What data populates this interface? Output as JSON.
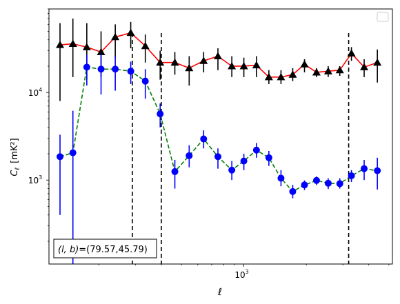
{
  "chart_data": {
    "type": "scatter",
    "title": "",
    "xlabel": "ℓ",
    "ylabel_main": "C",
    "ylabel_sub": "ℓ",
    "ylabel_unit": "[mK²]",
    "xscale": "log",
    "yscale": "log",
    "xlim": [
      115,
      5200
    ],
    "ylim": [
      110,
      90000
    ],
    "legend_placement": "top-right",
    "grid": false,
    "x_tick_labels": [
      {
        "value": 1000,
        "base": "10",
        "exp": "3"
      }
    ],
    "y_tick_labels": [
      {
        "value": 1000,
        "base": "10",
        "exp": "3"
      },
      {
        "value": 10000,
        "base": "10",
        "exp": "4"
      }
    ],
    "annotation": {
      "text_var": "(l, b)",
      "text_eq": "=(79.57,45.79)"
    },
    "vlines": [
      290,
      400,
      3200
    ],
    "series": [
      {
        "marker": "triangle",
        "line_color": "#ff0000",
        "marker_color": "#000000",
        "errorbar_color": "#000000",
        "linestyle": "solid",
        "points": [
          {
            "x": 130,
            "y": 35000,
            "lo": 8000,
            "hi": 62000
          },
          {
            "x": 150,
            "y": 36000,
            "lo": 15000,
            "hi": 70000
          },
          {
            "x": 175,
            "y": 33000,
            "lo": 14000,
            "hi": 62000
          },
          {
            "x": 205,
            "y": 29000,
            "lo": 15000,
            "hi": 50000
          },
          {
            "x": 240,
            "y": 43000,
            "lo": 25000,
            "hi": 60000
          },
          {
            "x": 285,
            "y": 48000,
            "lo": 32000,
            "hi": 64000
          },
          {
            "x": 335,
            "y": 34000,
            "lo": 22000,
            "hi": 46000
          },
          {
            "x": 395,
            "y": 22000,
            "lo": 14000,
            "hi": 30000
          },
          {
            "x": 465,
            "y": 22000,
            "lo": 16000,
            "hi": 29000
          },
          {
            "x": 545,
            "y": 19000,
            "lo": 12000,
            "hi": 26000
          },
          {
            "x": 640,
            "y": 23000,
            "lo": 17000,
            "hi": 29000
          },
          {
            "x": 750,
            "y": 26000,
            "lo": 18000,
            "hi": 32000
          },
          {
            "x": 875,
            "y": 20000,
            "lo": 15000,
            "hi": 26000
          },
          {
            "x": 1000,
            "y": 20000,
            "lo": 15000,
            "hi": 25000
          },
          {
            "x": 1150,
            "y": 20500,
            "lo": 15000,
            "hi": 26000
          },
          {
            "x": 1320,
            "y": 15000,
            "lo": 12500,
            "hi": 18000
          },
          {
            "x": 1510,
            "y": 15000,
            "lo": 12500,
            "hi": 18000
          },
          {
            "x": 1720,
            "y": 16000,
            "lo": 13500,
            "hi": 19000
          },
          {
            "x": 1960,
            "y": 21000,
            "lo": 17000,
            "hi": 24000
          },
          {
            "x": 2240,
            "y": 17000,
            "lo": 15000,
            "hi": 19000
          },
          {
            "x": 2550,
            "y": 17500,
            "lo": 15000,
            "hi": 20000
          },
          {
            "x": 2900,
            "y": 18000,
            "lo": 15500,
            "hi": 20000
          },
          {
            "x": 3300,
            "y": 28000,
            "lo": 23000,
            "hi": 33000
          },
          {
            "x": 3800,
            "y": 19500,
            "lo": 15000,
            "hi": 24000
          },
          {
            "x": 4400,
            "y": 22000,
            "lo": 13000,
            "hi": 31000
          }
        ]
      },
      {
        "marker": "circle",
        "line_color": "#008000",
        "marker_color": "#0000ff",
        "errorbar_color": "#0000ff",
        "linestyle": "dashed",
        "points": [
          {
            "x": 130,
            "y": 1850,
            "lo": 400,
            "hi": 3300
          },
          {
            "x": 150,
            "y": 2050,
            "lo": 110,
            "hi": 6200
          },
          {
            "x": 175,
            "y": 19500,
            "lo": 12000,
            "hi": 27000
          },
          {
            "x": 205,
            "y": 18500,
            "lo": 9500,
            "hi": 27500
          },
          {
            "x": 240,
            "y": 18500,
            "lo": 10500,
            "hi": 26000
          },
          {
            "x": 285,
            "y": 17500,
            "lo": 12500,
            "hi": 22500
          },
          {
            "x": 335,
            "y": 13500,
            "lo": 8500,
            "hi": 18500
          },
          {
            "x": 395,
            "y": 5700,
            "lo": 4000,
            "hi": 7500
          },
          {
            "x": 465,
            "y": 1250,
            "lo": 800,
            "hi": 1700
          },
          {
            "x": 545,
            "y": 1900,
            "lo": 1400,
            "hi": 2500
          },
          {
            "x": 640,
            "y": 2950,
            "lo": 2300,
            "hi": 3700
          },
          {
            "x": 750,
            "y": 1850,
            "lo": 1350,
            "hi": 2300
          },
          {
            "x": 875,
            "y": 1300,
            "lo": 1000,
            "hi": 1650
          },
          {
            "x": 1000,
            "y": 1650,
            "lo": 1300,
            "hi": 2000
          },
          {
            "x": 1150,
            "y": 2200,
            "lo": 1800,
            "hi": 2650
          },
          {
            "x": 1320,
            "y": 1800,
            "lo": 1450,
            "hi": 2150
          },
          {
            "x": 1510,
            "y": 1050,
            "lo": 850,
            "hi": 1300
          },
          {
            "x": 1720,
            "y": 740,
            "lo": 620,
            "hi": 880
          },
          {
            "x": 1960,
            "y": 880,
            "lo": 770,
            "hi": 990
          },
          {
            "x": 2240,
            "y": 990,
            "lo": 880,
            "hi": 1100
          },
          {
            "x": 2550,
            "y": 920,
            "lo": 790,
            "hi": 1050
          },
          {
            "x": 2900,
            "y": 910,
            "lo": 800,
            "hi": 1050
          },
          {
            "x": 3300,
            "y": 1120,
            "lo": 950,
            "hi": 1300
          },
          {
            "x": 3800,
            "y": 1350,
            "lo": 1000,
            "hi": 1700
          },
          {
            "x": 4400,
            "y": 1280,
            "lo": 780,
            "hi": 1800
          }
        ]
      }
    ]
  }
}
